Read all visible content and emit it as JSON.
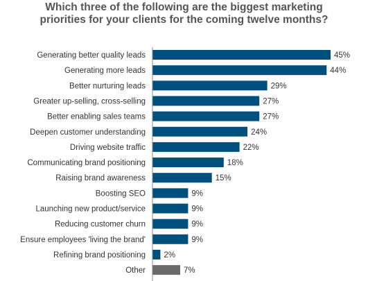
{
  "chart_data": {
    "type": "bar",
    "orientation": "horizontal",
    "title": "Which three of the following are the biggest marketing priorities for your clients for the coming twelve months?",
    "categories": [
      "Generating better quality leads",
      "Generating more leads",
      "Better nurturing leads",
      "Greater up-selling, cross-selling",
      "Better enabling sales teams",
      "Deepen customer understanding",
      "Driving website traffic",
      "Communicating brand positioning",
      "Raising brand awareness",
      "Boosting SEO",
      "Launching new product/service",
      "Reducing customer churn",
      "Ensure employees 'living the brand'",
      "Refining brand positioning",
      "Other"
    ],
    "values": [
      45,
      44,
      29,
      27,
      27,
      24,
      22,
      18,
      15,
      9,
      9,
      9,
      9,
      2,
      7
    ],
    "value_labels": [
      "45%",
      "44%",
      "29%",
      "27%",
      "27%",
      "24%",
      "22%",
      "18%",
      "15%",
      "9%",
      "9%",
      "9%",
      "9%",
      "2%",
      "7%"
    ],
    "unit": "%",
    "xlim": [
      0,
      45
    ],
    "grid": false,
    "colors": {
      "bar": "#00507E",
      "other_bar": "#6B6B6B",
      "axis": "#888888",
      "title": "#555555"
    }
  }
}
